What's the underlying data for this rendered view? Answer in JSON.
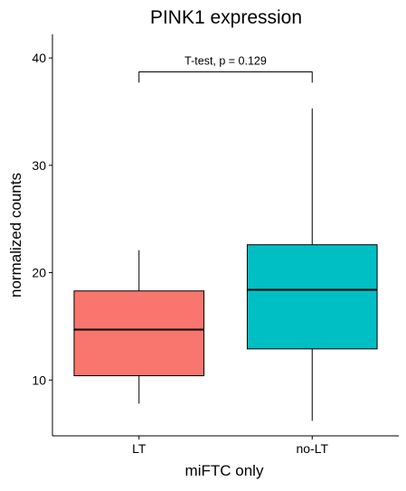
{
  "chart_data": {
    "type": "boxplot",
    "title": "PINK1 expression",
    "xlabel": "miFTC only",
    "ylabel": "normalized counts",
    "ylim": [
      4.8,
      42.2
    ],
    "yticks": [
      10,
      20,
      30,
      40
    ],
    "ytick_labels": [
      "10",
      "20",
      "30",
      "40"
    ],
    "grid": false,
    "legend": "none",
    "categories": [
      "LT",
      "no-LT"
    ],
    "boxes": [
      {
        "category": "LT",
        "whisker_low": 7.8,
        "q1": 10.4,
        "median": 14.7,
        "q3": 18.3,
        "whisker_high": 22.1,
        "color": "#F8766D"
      },
      {
        "category": "no-LT",
        "whisker_low": 6.2,
        "q1": 12.9,
        "median": 18.4,
        "q3": 22.6,
        "whisker_high": 35.3,
        "color": "#00BFC4"
      }
    ],
    "annotation": {
      "text": "T-test, p = 0.129",
      "from": "LT",
      "to": "no-LT",
      "y_bar": 38.7,
      "y_tip": 37.7
    }
  }
}
